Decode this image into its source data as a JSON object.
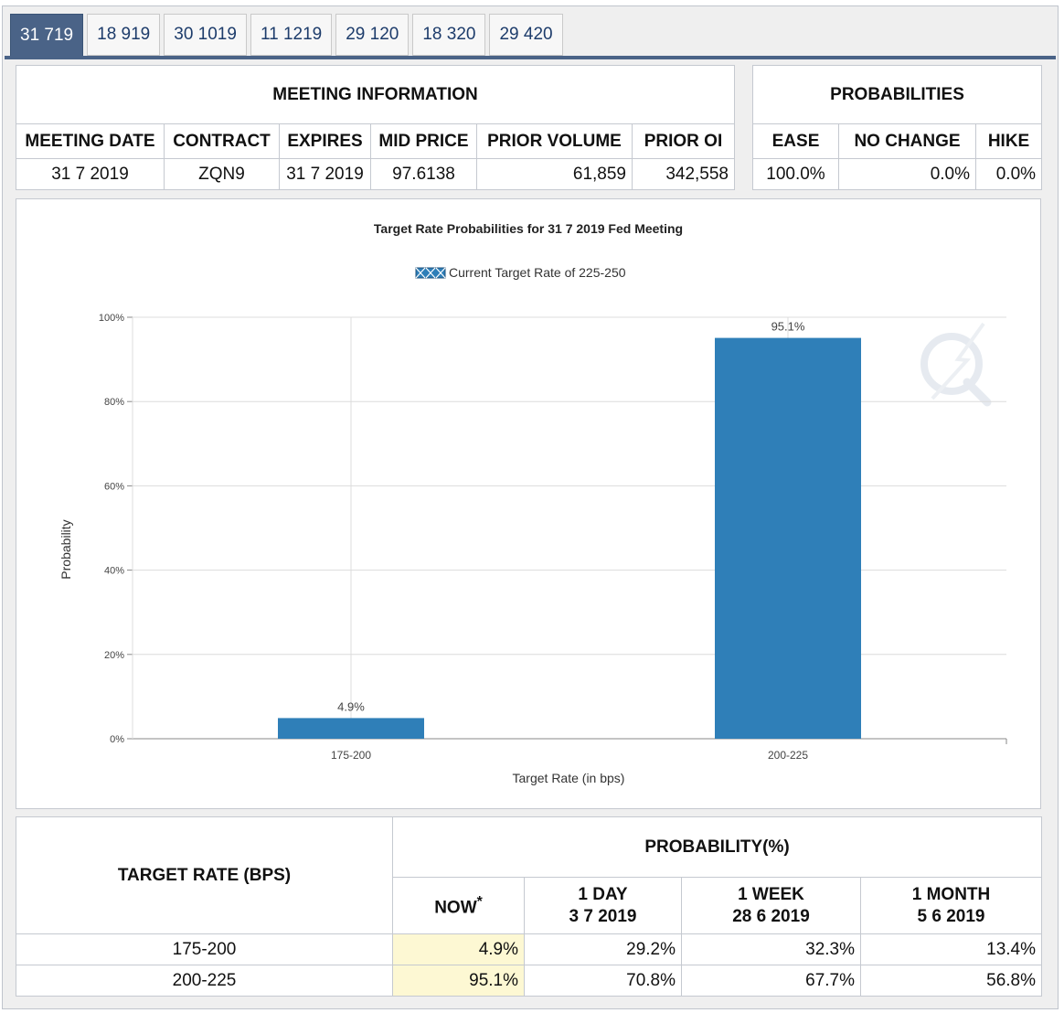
{
  "tabs": [
    {
      "label": "31 719",
      "active": true
    },
    {
      "label": "18 919",
      "active": false
    },
    {
      "label": "30 1019",
      "active": false
    },
    {
      "label": "11 1219",
      "active": false
    },
    {
      "label": "29 120",
      "active": false
    },
    {
      "label": "18 320",
      "active": false
    },
    {
      "label": "29 420",
      "active": false
    }
  ],
  "meeting_info": {
    "title": "MEETING INFORMATION",
    "headers": {
      "meeting_date": "MEETING DATE",
      "contract": "CONTRACT",
      "expires": "EXPIRES",
      "mid_price": "MID PRICE",
      "prior_volume": "PRIOR VOLUME",
      "prior_oi": "PRIOR OI"
    },
    "values": {
      "meeting_date": "31 7 2019",
      "contract": "ZQN9",
      "expires": "31 7 2019",
      "mid_price": "97.6138",
      "prior_volume": "61,859",
      "prior_oi": "342,558"
    }
  },
  "probabilities": {
    "title": "PROBABILITIES",
    "headers": {
      "ease": "EASE",
      "no_change": "NO CHANGE",
      "hike": "HIKE"
    },
    "values": {
      "ease": "100.0%",
      "no_change": "0.0%",
      "hike": "0.0%"
    }
  },
  "chart_data": {
    "type": "bar",
    "title": "Target Rate Probabilities for 31 7 2019 Fed Meeting",
    "legend": {
      "label": "Current Target Rate of 225-250",
      "placement": "top-center"
    },
    "xlabel": "Target Rate (in bps)",
    "ylabel": "Probability",
    "categories": [
      "175-200",
      "200-225"
    ],
    "values": [
      4.9,
      95.1
    ],
    "data_labels": [
      "4.9%",
      "95.1%"
    ],
    "ylim": [
      0,
      100
    ],
    "yticks": [
      0,
      20,
      40,
      60,
      80,
      100
    ],
    "ytick_labels": [
      "0%",
      "20%",
      "40%",
      "60%",
      "80%",
      "100%"
    ],
    "grid": true,
    "bar_color": "#2f7fb8"
  },
  "target_table": {
    "target_header": "TARGET RATE (BPS)",
    "prob_header": "PROBABILITY(%)",
    "columns": [
      {
        "line1": "NOW",
        "line2": "",
        "mark": "*"
      },
      {
        "line1": "1 DAY",
        "line2": "3 7 2019",
        "mark": ""
      },
      {
        "line1": "1 WEEK",
        "line2": "28 6 2019",
        "mark": ""
      },
      {
        "line1": "1 MONTH",
        "line2": "5 6 2019",
        "mark": ""
      }
    ],
    "rows": [
      {
        "rate": "175-200",
        "now": "4.9%",
        "day": "29.2%",
        "week": "32.3%",
        "month": "13.4%"
      },
      {
        "rate": "200-225",
        "now": "95.1%",
        "day": "70.8%",
        "week": "67.7%",
        "month": "56.8%"
      }
    ]
  },
  "colors": {
    "accent": "#4a6387",
    "bar": "#2f7fb8",
    "highlight": "#fdf8d3"
  }
}
